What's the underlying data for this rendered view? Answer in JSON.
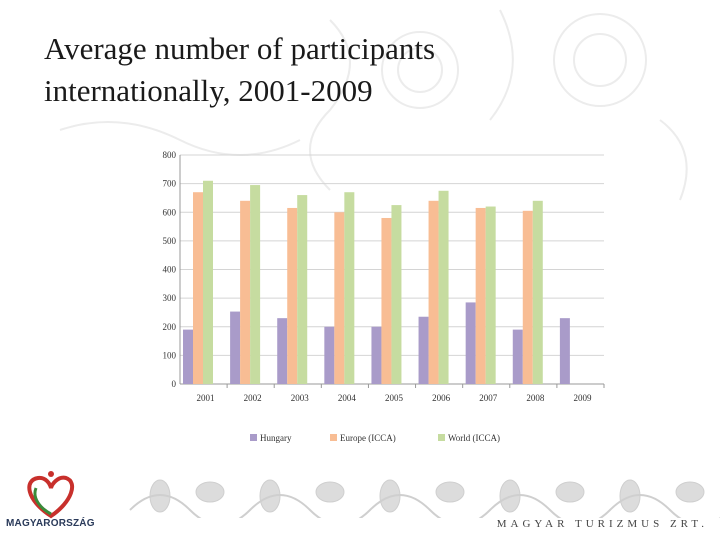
{
  "title_line1": "Average number of participants",
  "title_line2": "internationally, 2001-2009",
  "logo_text": "MAGYARORSZÁG",
  "company_text": "MAGYAR TURIZMUS ZRT.",
  "chart_data": {
    "type": "bar",
    "title": "",
    "xlabel": "",
    "ylabel": "",
    "ylim": [
      0,
      800
    ],
    "yticks": [
      0,
      100,
      200,
      300,
      400,
      500,
      600,
      700,
      800
    ],
    "grid": true,
    "legend_position": "bottom",
    "categories": [
      "2001",
      "2002",
      "2003",
      "2004",
      "2005",
      "2006",
      "2007",
      "2008",
      "2009"
    ],
    "series": [
      {
        "name": "Hungary",
        "color": "#a99bc9",
        "values": [
          190,
          253,
          230,
          200,
          200,
          235,
          285,
          190,
          230
        ]
      },
      {
        "name": "Europe (ICCA)",
        "color": "#f8bd94",
        "values": [
          670,
          640,
          615,
          600,
          580,
          640,
          615,
          605,
          null
        ]
      },
      {
        "name": "World (ICCA)",
        "color": "#c6dca0",
        "values": [
          710,
          695,
          660,
          670,
          625,
          675,
          620,
          640,
          null
        ]
      }
    ]
  }
}
